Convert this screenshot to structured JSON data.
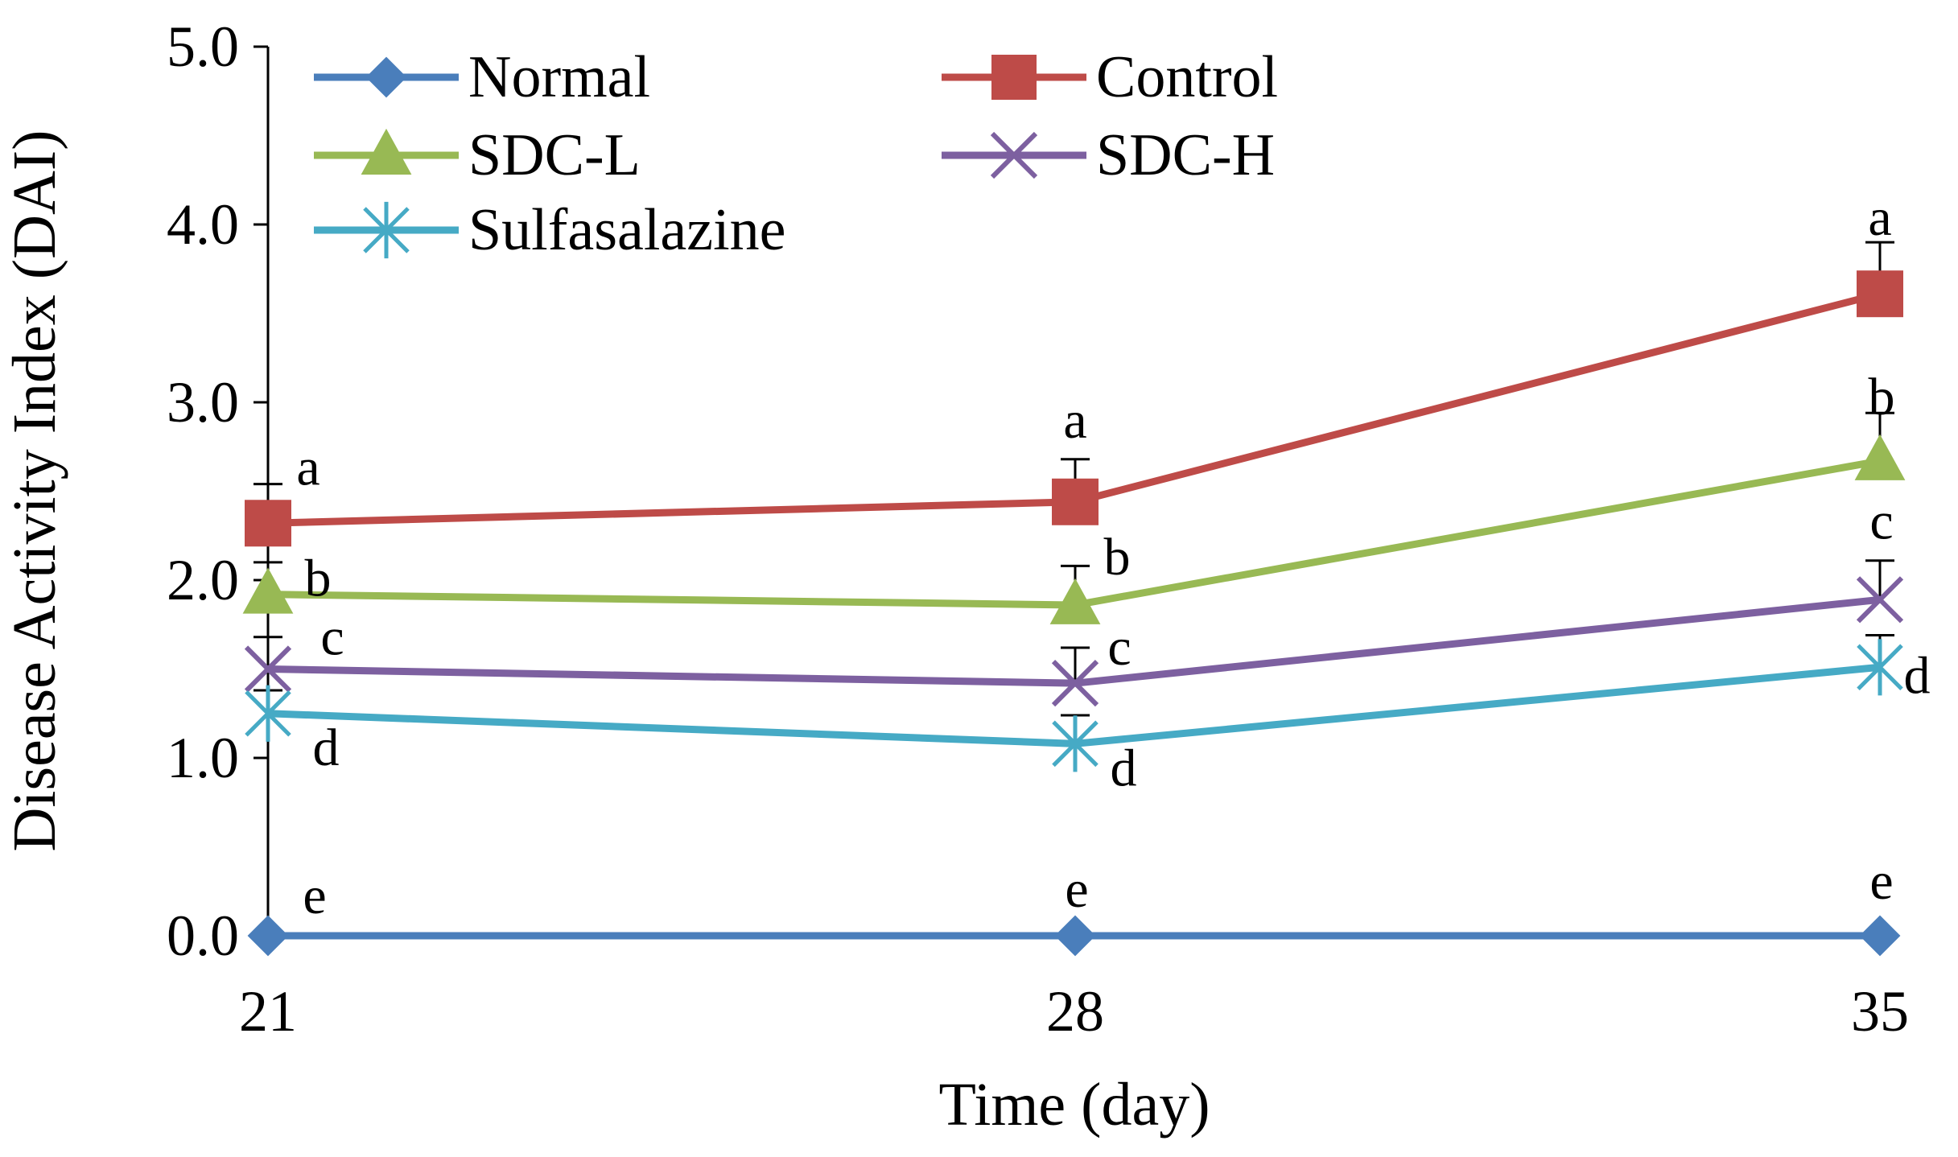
{
  "chart_data": {
    "type": "line",
    "title": "",
    "xlabel": "Time (day)",
    "ylabel": "Disease Activity Index (DAI)",
    "x": [
      21,
      28,
      35
    ],
    "x_tick_labels": [
      "21",
      "28",
      "35"
    ],
    "ylim": [
      0,
      5
    ],
    "y_ticks": [
      0,
      1,
      2,
      3,
      4,
      5
    ],
    "y_tick_labels": [
      "0.0",
      "1.0",
      "2.0",
      "3.0",
      "4.0",
      "5.0"
    ],
    "grid": false,
    "legend_position": "top",
    "series": [
      {
        "name": "Normal",
        "color": "#4a7ebb",
        "marker": "diamond",
        "values": [
          0.0,
          0.0,
          0.0
        ],
        "errors": [
          0.0,
          0.0,
          0.0
        ],
        "labels": [
          "e",
          "e",
          "e"
        ]
      },
      {
        "name": "Control",
        "color": "#be4b48",
        "marker": "square",
        "values": [
          2.32,
          2.44,
          3.61
        ],
        "errors": [
          0.22,
          0.24,
          0.29
        ],
        "labels": [
          "a",
          "a",
          "a"
        ]
      },
      {
        "name": "SDC-L",
        "color": "#98b954",
        "marker": "triangle",
        "values": [
          1.92,
          1.86,
          2.67
        ],
        "errors": [
          0.18,
          0.22,
          0.27
        ],
        "labels": [
          "b",
          "b",
          "b"
        ]
      },
      {
        "name": "SDC-H",
        "color": "#7d60a0",
        "marker": "x",
        "values": [
          1.5,
          1.42,
          1.89
        ],
        "errors": [
          0.18,
          0.2,
          0.22
        ],
        "labels": [
          "c",
          "c",
          "c"
        ]
      },
      {
        "name": "Sulfasalazine",
        "color": "#46aac5",
        "marker": "asterisk",
        "values": [
          1.25,
          1.08,
          1.51
        ],
        "errors": [
          0.13,
          0.16,
          0.18
        ],
        "labels": [
          "d",
          "d",
          "d"
        ]
      }
    ]
  }
}
